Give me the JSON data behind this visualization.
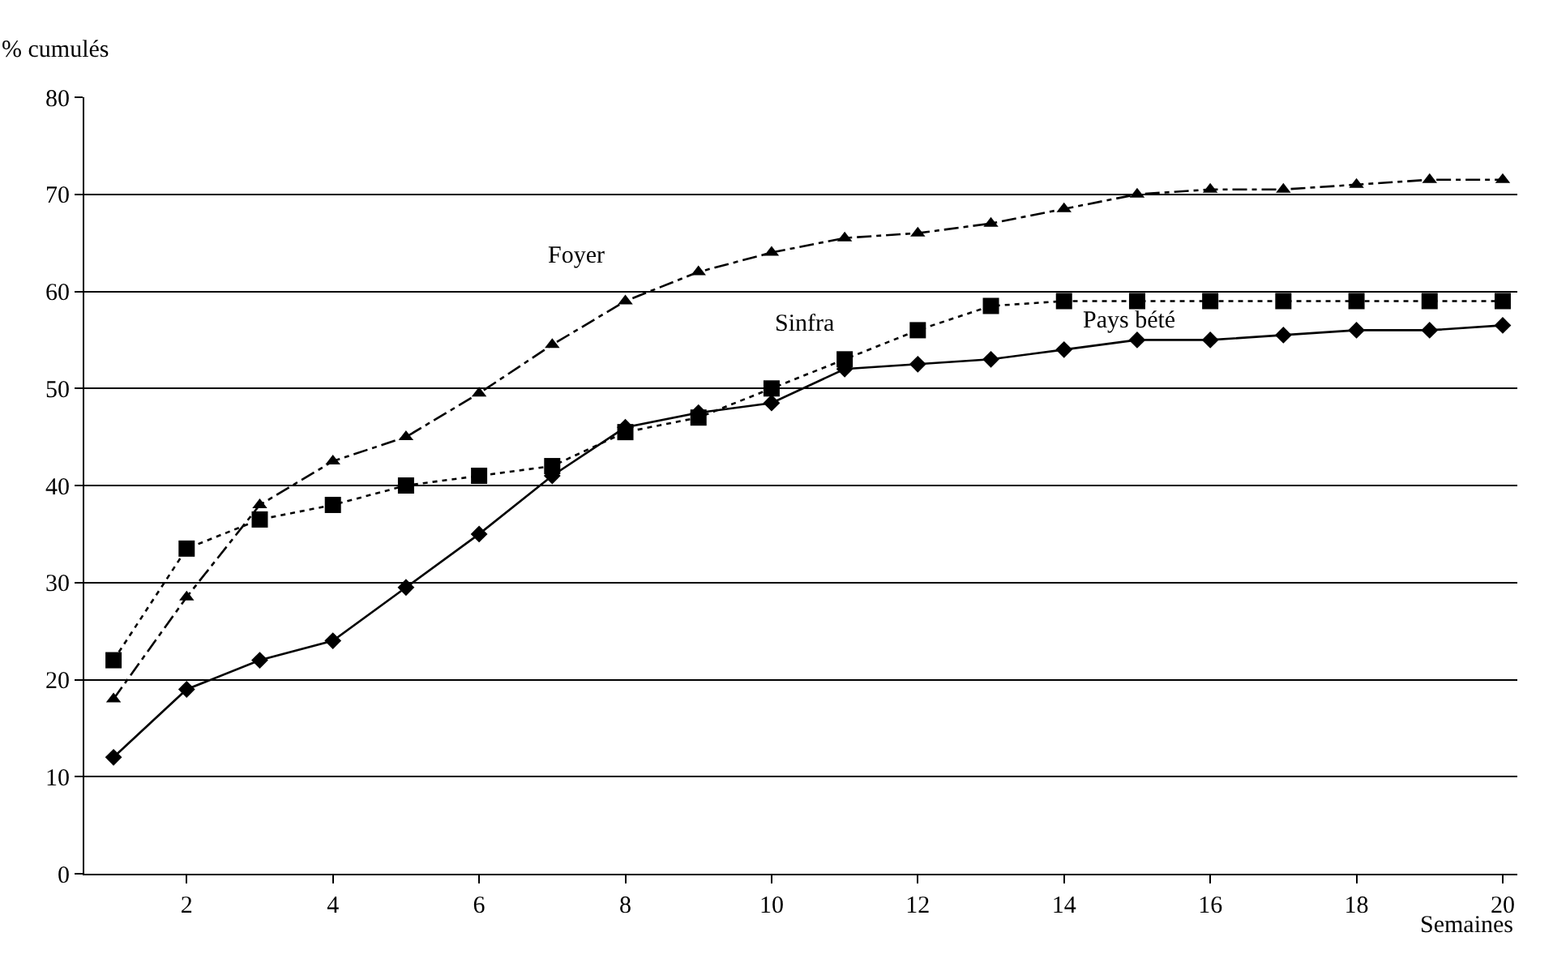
{
  "chart_data": {
    "type": "line",
    "xlabel": "Semaines",
    "ylabel": "% cumulés",
    "x": [
      1,
      2,
      3,
      4,
      5,
      6,
      7,
      8,
      9,
      10,
      11,
      12,
      13,
      14,
      15,
      16,
      17,
      18,
      19,
      20
    ],
    "series": [
      {
        "name": "Foyer",
        "color": "#000000",
        "marker": "triangle",
        "line_style": "dashdot",
        "values": [
          18,
          28.5,
          38,
          42.5,
          45,
          49.5,
          54.5,
          59,
          62,
          64,
          65.5,
          66,
          67,
          68.5,
          70,
          70.5,
          70.5,
          71,
          71.5,
          71.5
        ]
      },
      {
        "name": "Sinfra",
        "color": "#000000",
        "marker": "square",
        "line_style": "dotted",
        "values": [
          22,
          33.5,
          36.5,
          38,
          40,
          41,
          42,
          45.5,
          47,
          50,
          53,
          56,
          58.5,
          59,
          59,
          59,
          59,
          59,
          59,
          59
        ]
      },
      {
        "name": "Pays bété",
        "color": "#000000",
        "marker": "diamond",
        "line_style": "solid",
        "values": [
          12,
          19,
          22,
          24,
          29.5,
          35,
          41,
          46,
          47.5,
          48.5,
          52,
          52.5,
          53,
          54,
          55,
          55,
          55.5,
          56,
          56,
          56.5
        ]
      }
    ],
    "xlim": [
      0.6,
      20.2
    ],
    "xticks": [
      2,
      4,
      6,
      8,
      10,
      12,
      14,
      16,
      18,
      20
    ],
    "ylim": [
      0,
      80
    ],
    "yticks": [
      0,
      10,
      20,
      30,
      40,
      50,
      60,
      70,
      80
    ],
    "grid": "y",
    "legend": false
  }
}
